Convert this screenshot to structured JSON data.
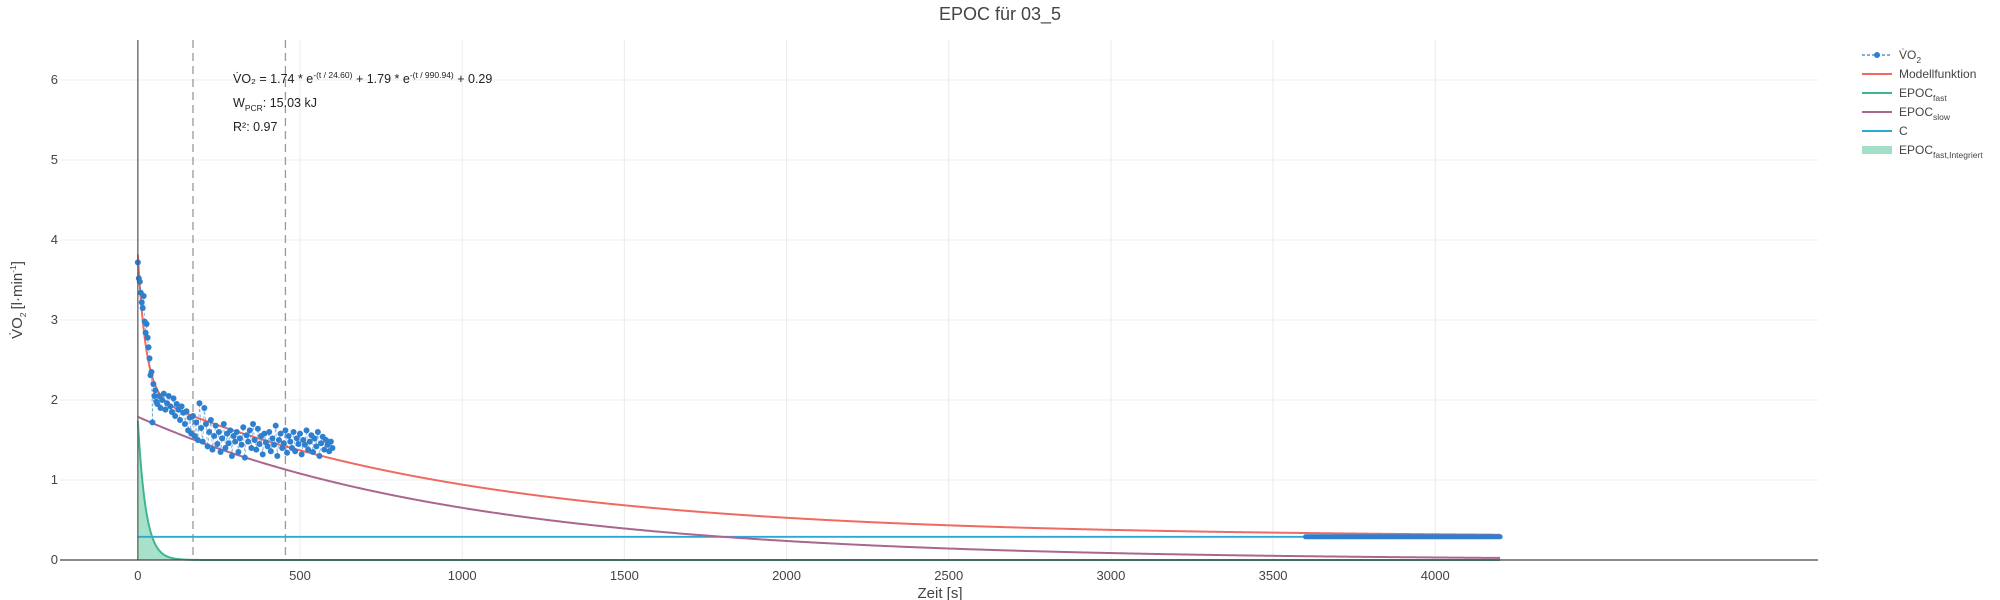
{
  "chart_data": {
    "type": "scatter",
    "title": "EPOC für 03_5",
    "xlabel": "Zeit [s]",
    "ylabel": "V̇O",
    "ylabel_sub": "2",
    "ylabel_unit": "[l·min",
    "ylabel_unit_sup": "-1",
    "ylabel_unit_end": "]",
    "xlim": [
      -240,
      5180
    ],
    "ylim": [
      0,
      6.5
    ],
    "xticks": [
      0,
      500,
      1000,
      1500,
      2000,
      2500,
      3000,
      3500,
      4000
    ],
    "yticks": [
      0,
      1,
      2,
      3,
      4,
      5,
      6
    ],
    "grid": true,
    "legend_position": "top-right",
    "model": {
      "a1": 1.74,
      "tau1": 24.6,
      "a2": 1.79,
      "tau2": 990.94,
      "c": 0.29,
      "r2": 0.97,
      "w_pcr_kj": 15.03,
      "x_end": 4200
    },
    "vlines": [
      170,
      455
    ],
    "baseline_segment": {
      "x": [
        3600,
        4200
      ],
      "y": 0.29
    },
    "series": [
      {
        "name": "V̇O",
        "name_sub": "2",
        "color": "#2f7fcf",
        "x": [
          0,
          3,
          6,
          9,
          12,
          15,
          18,
          21,
          24,
          27,
          30,
          33,
          36,
          39,
          42,
          45,
          48,
          51,
          54,
          57,
          60,
          65,
          70,
          75,
          80,
          85,
          90,
          95,
          100,
          105,
          110,
          115,
          120,
          125,
          130,
          135,
          140,
          145,
          150,
          155,
          160,
          165,
          170,
          175,
          180,
          185,
          190,
          195,
          200,
          205,
          210,
          215,
          220,
          225,
          230,
          235,
          240,
          245,
          250,
          255,
          260,
          265,
          270,
          275,
          280,
          285,
          290,
          295,
          300,
          305,
          310,
          315,
          320,
          325,
          330,
          335,
          340,
          345,
          350,
          355,
          360,
          365,
          370,
          375,
          380,
          385,
          390,
          395,
          400,
          405,
          410,
          415,
          420,
          425,
          430,
          435,
          440,
          445,
          450,
          455,
          460,
          465,
          470,
          475,
          480,
          485,
          490,
          495,
          500,
          505,
          510,
          515,
          520,
          525,
          530,
          535,
          540,
          545,
          550,
          555,
          560,
          565,
          570,
          575,
          580,
          585,
          590,
          595,
          600
        ],
        "y": [
          3.72,
          3.52,
          3.48,
          3.34,
          3.22,
          3.15,
          3.3,
          2.98,
          2.84,
          2.95,
          2.78,
          2.66,
          2.52,
          2.31,
          2.35,
          1.72,
          2.2,
          2.05,
          2.12,
          1.98,
          1.95,
          2.05,
          1.9,
          2.0,
          2.08,
          1.88,
          1.96,
          2.05,
          1.92,
          1.85,
          2.02,
          1.8,
          1.95,
          1.88,
          1.75,
          1.92,
          1.84,
          1.7,
          1.86,
          1.62,
          1.78,
          1.58,
          1.8,
          1.55,
          1.72,
          1.5,
          1.96,
          1.65,
          1.48,
          1.9,
          1.7,
          1.42,
          1.6,
          1.75,
          1.38,
          1.55,
          1.68,
          1.45,
          1.6,
          1.35,
          1.52,
          1.7,
          1.4,
          1.58,
          1.46,
          1.62,
          1.3,
          1.55,
          1.48,
          1.6,
          1.35,
          1.52,
          1.44,
          1.66,
          1.28,
          1.56,
          1.48,
          1.62,
          1.4,
          1.7,
          1.5,
          1.38,
          1.64,
          1.45,
          1.55,
          1.32,
          1.58,
          1.47,
          1.42,
          1.6,
          1.36,
          1.52,
          1.44,
          1.68,
          1.3,
          1.5,
          1.58,
          1.4,
          1.46,
          1.62,
          1.34,
          1.55,
          1.48,
          1.4,
          1.6,
          1.36,
          1.52,
          1.45,
          1.58,
          1.32,
          1.5,
          1.44,
          1.62,
          1.38,
          1.48,
          1.56,
          1.35,
          1.52,
          1.42,
          1.6,
          1.3,
          1.46,
          1.54,
          1.38,
          1.5,
          1.44,
          1.36,
          1.48,
          1.4
        ]
      },
      {
        "name": "Modellfunktion",
        "color": "#ef6b61"
      },
      {
        "name": "EPOC",
        "name_sub": "fast",
        "color": "#3fb68f"
      },
      {
        "name": "EPOC",
        "name_sub": "slow",
        "color": "#a9678f"
      },
      {
        "name": "C",
        "color": "#2aa8d6"
      },
      {
        "name": "EPOC",
        "name_sub": "fast,Integriert",
        "color": "#a3dfc7"
      }
    ],
    "annotations": {
      "equation": "V̇O₂ = 1.74 * e",
      "exp1": "-(t / 24.60)",
      "mid": " + 1.79 * e",
      "exp2": "-(t / 990.94)",
      "tail": " + 0.29",
      "w_label": "W",
      "w_sub": "PCR",
      "w_value": ": 15.03 kJ",
      "r2_label": "R²: 0.97"
    }
  }
}
